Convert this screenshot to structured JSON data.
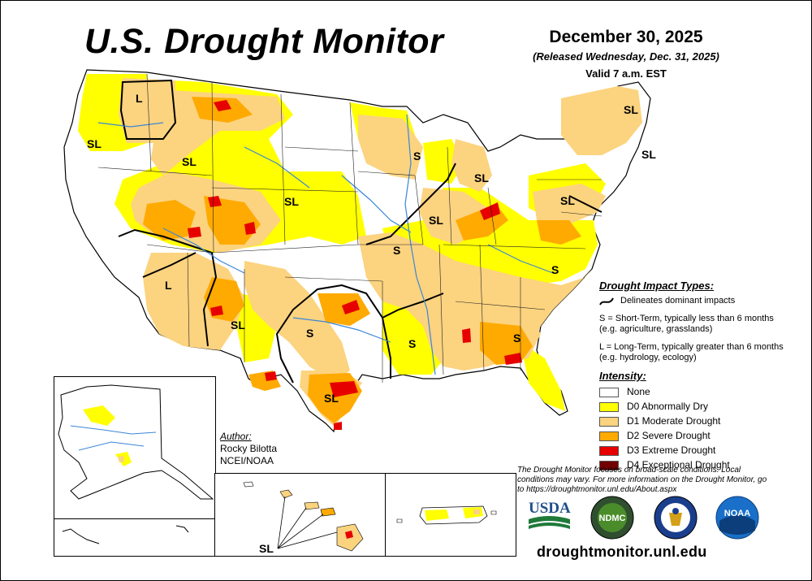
{
  "header": {
    "title": "U.S. Drought Monitor",
    "date": "December 30, 2025",
    "released": "(Released Wednesday, Dec. 31, 2025)",
    "valid": "Valid 7 a.m. EST"
  },
  "impact_types": {
    "heading": "Drought Impact Types:",
    "line_desc": "Delineates dominant impacts",
    "short_term": "S = Short-Term, typically less than 6 months (e.g. agriculture, grasslands)",
    "long_term": "L = Long-Term, typically greater than 6 months (e.g. hydrology, ecology)"
  },
  "intensity": {
    "heading": "Intensity:",
    "items": [
      {
        "label": "None",
        "color": "#ffffff"
      },
      {
        "label": "D0 Abnormally Dry",
        "color": "#ffff00"
      },
      {
        "label": "D1 Moderate Drought",
        "color": "#fcd37f"
      },
      {
        "label": "D2 Severe Drought",
        "color": "#ffaa00"
      },
      {
        "label": "D3 Extreme Drought",
        "color": "#e60000"
      },
      {
        "label": "D4 Exceptional Drought",
        "color": "#730000"
      }
    ]
  },
  "author": {
    "label": "Author:",
    "name": "Rocky Bilotta",
    "org": "NCEI/NOAA"
  },
  "note": "The Drought Monitor focuses on broad-scale conditions. Local conditions may vary. For more information on the Drought Monitor, go to https://droughtmonitor.unl.edu/About.aspx",
  "logos": {
    "usda": "USDA",
    "ndmc": "NDMC",
    "noaa": "NOAA"
  },
  "url": "droughtmonitor.unl.edu",
  "map_labels": {
    "wa_l": "L",
    "wa_sl": "SL",
    "id_sl": "SL",
    "plains_sl": "SL",
    "az_l": "L",
    "nm_sl": "SL",
    "mn_s": "S",
    "mi_sl": "SL",
    "me_sl": "SL",
    "ne_sl": "SL",
    "pa_sl": "SL",
    "il_sl": "SL",
    "ia_s": "S",
    "va_s": "S",
    "ok_s": "S",
    "ar_s": "S",
    "ga_s": "S",
    "tx_sl": "SL",
    "hi_sl": "SL"
  }
}
